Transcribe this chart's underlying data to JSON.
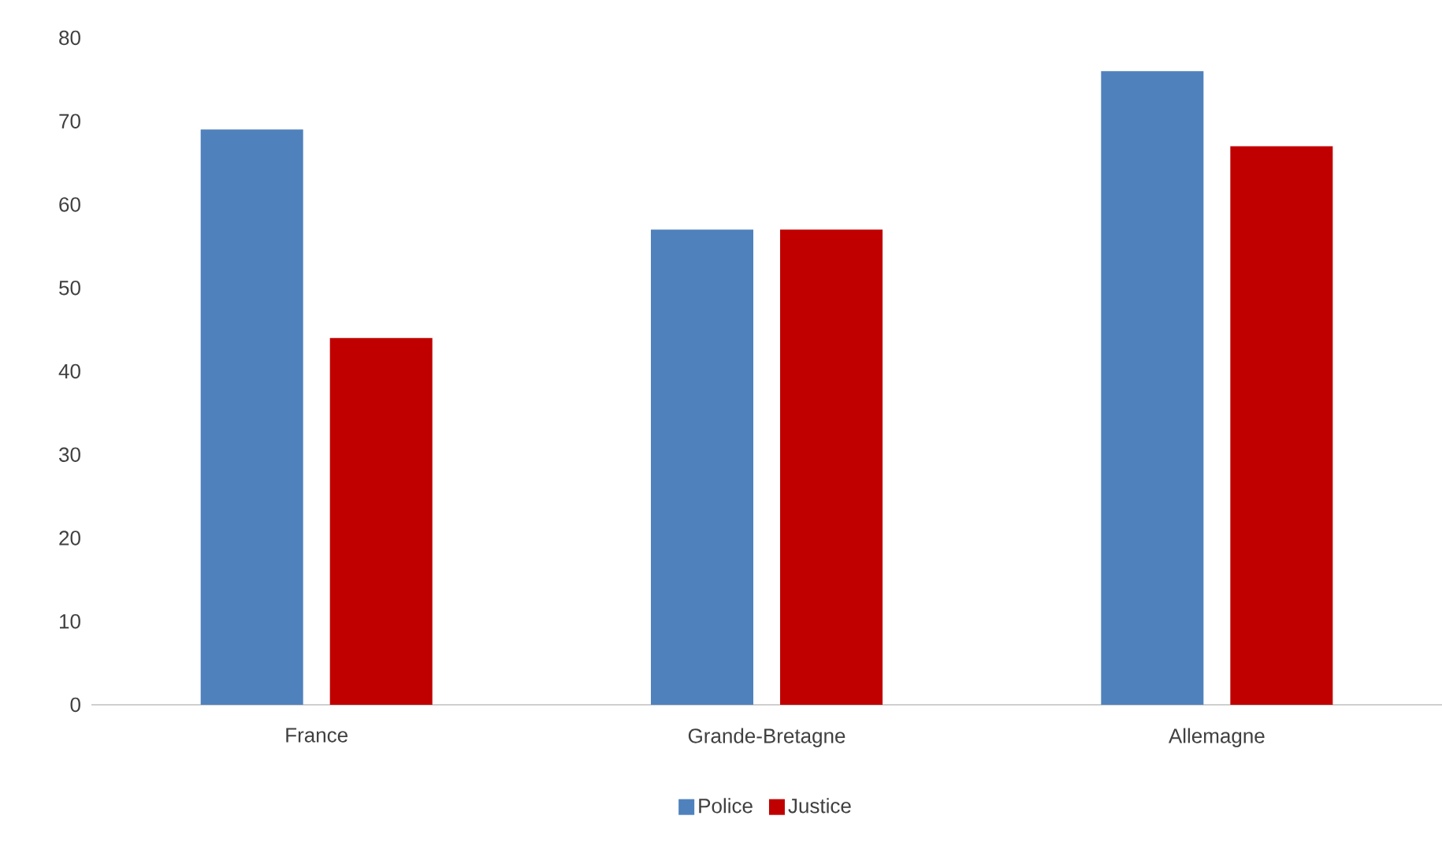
{
  "chart_data": {
    "type": "bar",
    "categories": [
      "France",
      "Grande-Bretagne",
      "Allemagne"
    ],
    "series": [
      {
        "name": "Police",
        "color": "#4f81bd",
        "values": [
          69,
          57,
          76
        ]
      },
      {
        "name": "Justice",
        "color": "#c00000",
        "values": [
          44,
          57,
          67
        ]
      }
    ],
    "ylim": [
      0,
      80
    ],
    "yticks": [
      0,
      10,
      20,
      30,
      40,
      50,
      60,
      70,
      80
    ],
    "legend": "bottom"
  }
}
